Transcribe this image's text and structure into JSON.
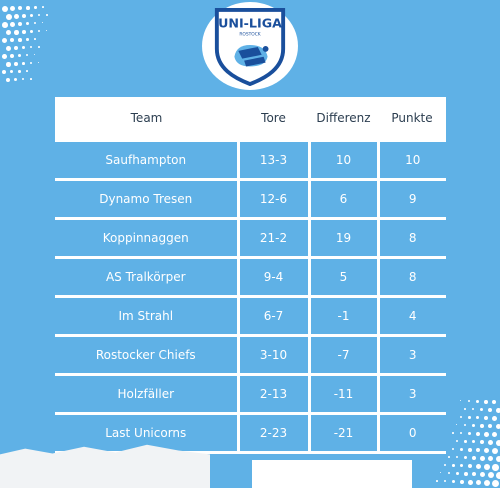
{
  "logo": {
    "title": "UNI-LIGA",
    "subtitle": "ROSTOCK",
    "colors": {
      "primary": "#1a4f9c",
      "accent": "#5fb1e6"
    }
  },
  "colors": {
    "background": "#5fb1e6",
    "header_text": "#2c3e50",
    "cell_text": "#ffffff"
  },
  "table": {
    "headers": [
      "Team",
      "Tore",
      "Differenz",
      "Punkte"
    ],
    "rows": [
      [
        "Saufhampton",
        "13-3",
        "10",
        "10"
      ],
      [
        "Dynamo Tresen",
        "12-6",
        "6",
        "9"
      ],
      [
        "Koppinnaggen",
        "21-2",
        "19",
        "8"
      ],
      [
        "AS Tralkörper",
        "9-4",
        "5",
        "8"
      ],
      [
        "Im Strahl",
        "6-7",
        "-1",
        "4"
      ],
      [
        "Rostocker Chiefs",
        "3-10",
        "-7",
        "3"
      ],
      [
        "Holzfäller",
        "2-13",
        "-11",
        "3"
      ],
      [
        "Last Unicorns",
        "2-23",
        "-21",
        "0"
      ]
    ]
  }
}
